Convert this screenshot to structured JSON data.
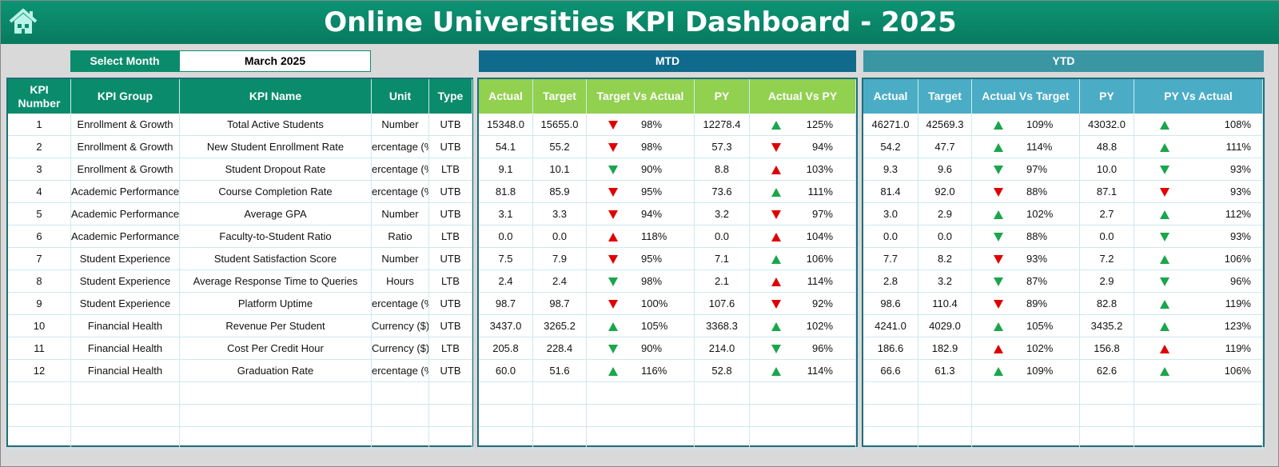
{
  "title": "Online Universities KPI Dashboard - 2025",
  "select_month": {
    "label": "Select Month",
    "value": "March 2025"
  },
  "mtd_label": "MTD",
  "ytd_label": "YTD",
  "colors": {
    "green": "#0a8c6c",
    "mtd_header": "#92d050",
    "ytd_header": "#4bacc6",
    "mtd_banner": "#0f6a8b",
    "ytd_banner": "#3a96a3",
    "up_good": "#1aa64b",
    "down_bad": "#e00000"
  },
  "left_headers": [
    "KPI Number",
    "KPI Group",
    "KPI Name",
    "Unit",
    "Type"
  ],
  "mtd_headers": [
    "Actual",
    "Target",
    "Target Vs Actual",
    "PY",
    "Actual Vs PY"
  ],
  "ytd_headers": [
    "Actual",
    "Target",
    "Actual Vs Target",
    "PY",
    "PY Vs Actual"
  ],
  "rows": [
    {
      "n": "1",
      "group": "Enrollment & Growth",
      "name": "Total Active Students",
      "unit": "Number",
      "type": "UTB",
      "mtd": [
        "15348.0",
        "15655.0",
        [
          "down",
          "red",
          "98%"
        ],
        "12278.4",
        [
          "up",
          "green",
          "125%"
        ]
      ],
      "ytd": [
        "46271.0",
        "42569.3",
        [
          "up",
          "green",
          "109%"
        ],
        "43032.0",
        [
          "up",
          "green",
          "108%"
        ]
      ]
    },
    {
      "n": "2",
      "group": "Enrollment & Growth",
      "name": "New Student Enrollment Rate",
      "unit": "ercentage (%",
      "type": "UTB",
      "mtd": [
        "54.1",
        "55.2",
        [
          "down",
          "red",
          "98%"
        ],
        "57.3",
        [
          "down",
          "red",
          "94%"
        ]
      ],
      "ytd": [
        "54.2",
        "47.7",
        [
          "up",
          "green",
          "114%"
        ],
        "48.8",
        [
          "up",
          "green",
          "111%"
        ]
      ]
    },
    {
      "n": "3",
      "group": "Enrollment & Growth",
      "name": "Student Dropout Rate",
      "unit": "ercentage (%",
      "type": "LTB",
      "mtd": [
        "9.1",
        "10.1",
        [
          "down",
          "green",
          "90%"
        ],
        "8.8",
        [
          "up",
          "red",
          "103%"
        ]
      ],
      "ytd": [
        "9.3",
        "9.6",
        [
          "down",
          "green",
          "97%"
        ],
        "10.0",
        [
          "down",
          "green",
          "93%"
        ]
      ]
    },
    {
      "n": "4",
      "group": "Academic Performance",
      "name": "Course Completion Rate",
      "unit": "ercentage (%",
      "type": "UTB",
      "mtd": [
        "81.8",
        "85.9",
        [
          "down",
          "red",
          "95%"
        ],
        "73.6",
        [
          "up",
          "green",
          "111%"
        ]
      ],
      "ytd": [
        "81.4",
        "92.0",
        [
          "down",
          "red",
          "88%"
        ],
        "87.1",
        [
          "down",
          "red",
          "93%"
        ]
      ]
    },
    {
      "n": "5",
      "group": "Academic Performance",
      "name": "Average GPA",
      "unit": "Number",
      "type": "UTB",
      "mtd": [
        "3.1",
        "3.3",
        [
          "down",
          "red",
          "94%"
        ],
        "3.2",
        [
          "down",
          "red",
          "97%"
        ]
      ],
      "ytd": [
        "3.0",
        "2.9",
        [
          "up",
          "green",
          "102%"
        ],
        "2.7",
        [
          "up",
          "green",
          "112%"
        ]
      ]
    },
    {
      "n": "6",
      "group": "Academic Performance",
      "name": "Faculty-to-Student Ratio",
      "unit": "Ratio",
      "type": "LTB",
      "mtd": [
        "0.0",
        "0.0",
        [
          "up",
          "red",
          "118%"
        ],
        "0.0",
        [
          "up",
          "red",
          "104%"
        ]
      ],
      "ytd": [
        "0.0",
        "0.0",
        [
          "down",
          "green",
          "88%"
        ],
        "0.0",
        [
          "down",
          "green",
          "93%"
        ]
      ]
    },
    {
      "n": "7",
      "group": "Student Experience",
      "name": "Student Satisfaction Score",
      "unit": "Number",
      "type": "UTB",
      "mtd": [
        "7.5",
        "7.9",
        [
          "down",
          "red",
          "95%"
        ],
        "7.1",
        [
          "up",
          "green",
          "106%"
        ]
      ],
      "ytd": [
        "7.7",
        "8.2",
        [
          "down",
          "red",
          "93%"
        ],
        "7.2",
        [
          "up",
          "green",
          "106%"
        ]
      ]
    },
    {
      "n": "8",
      "group": "Student Experience",
      "name": "Average Response Time to Queries",
      "unit": "Hours",
      "type": "LTB",
      "mtd": [
        "2.4",
        "2.4",
        [
          "down",
          "green",
          "98%"
        ],
        "2.1",
        [
          "up",
          "red",
          "114%"
        ]
      ],
      "ytd": [
        "2.8",
        "3.2",
        [
          "down",
          "green",
          "87%"
        ],
        "2.9",
        [
          "down",
          "green",
          "96%"
        ]
      ]
    },
    {
      "n": "9",
      "group": "Student Experience",
      "name": "Platform Uptime",
      "unit": "ercentage (%",
      "type": "UTB",
      "mtd": [
        "98.7",
        "98.7",
        [
          "down",
          "red",
          "100%"
        ],
        "107.6",
        [
          "down",
          "red",
          "92%"
        ]
      ],
      "ytd": [
        "98.6",
        "110.4",
        [
          "down",
          "red",
          "89%"
        ],
        "82.8",
        [
          "up",
          "green",
          "119%"
        ]
      ]
    },
    {
      "n": "10",
      "group": "Financial Health",
      "name": "Revenue Per Student",
      "unit": "Currency ($)",
      "type": "UTB",
      "mtd": [
        "3437.0",
        "3265.2",
        [
          "up",
          "green",
          "105%"
        ],
        "3368.3",
        [
          "up",
          "green",
          "102%"
        ]
      ],
      "ytd": [
        "4241.0",
        "4029.0",
        [
          "up",
          "green",
          "105%"
        ],
        "3435.2",
        [
          "up",
          "green",
          "123%"
        ]
      ]
    },
    {
      "n": "11",
      "group": "Financial Health",
      "name": "Cost Per Credit Hour",
      "unit": "Currency ($)",
      "type": "LTB",
      "mtd": [
        "205.8",
        "228.4",
        [
          "down",
          "green",
          "90%"
        ],
        "214.0",
        [
          "down",
          "green",
          "96%"
        ]
      ],
      "ytd": [
        "186.6",
        "182.9",
        [
          "up",
          "red",
          "102%"
        ],
        "156.8",
        [
          "up",
          "red",
          "119%"
        ]
      ]
    },
    {
      "n": "12",
      "group": "Financial Health",
      "name": "Graduation Rate",
      "unit": "ercentage (%",
      "type": "UTB",
      "mtd": [
        "60.0",
        "51.6",
        [
          "up",
          "green",
          "116%"
        ],
        "52.8",
        [
          "up",
          "green",
          "114%"
        ]
      ],
      "ytd": [
        "66.6",
        "61.3",
        [
          "up",
          "green",
          "109%"
        ],
        "62.6",
        [
          "up",
          "green",
          "106%"
        ]
      ]
    }
  ]
}
